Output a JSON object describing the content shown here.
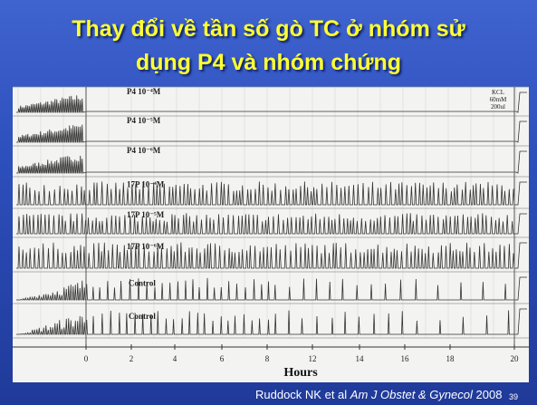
{
  "slide": {
    "title_lines": [
      "Thay đổi về tần số gò TC ở nhóm sử",
      "dụng P4 và nhóm chứng"
    ],
    "figure": {
      "traces": [
        {
          "label": "P4 10⁻⁴M"
        },
        {
          "label": "P4 10⁻⁵M"
        },
        {
          "label": "P4 10⁻⁶M"
        },
        {
          "label": "17P 10⁻⁴M"
        },
        {
          "label": "17P 10⁻⁵M"
        },
        {
          "label": "17P 10⁻⁶M"
        },
        {
          "label": "Control"
        },
        {
          "label": "Control"
        }
      ],
      "kcl_note": [
        "KCL",
        "60mM",
        "200ul"
      ],
      "axis": {
        "ticks": [
          0,
          2,
          4,
          6,
          8,
          12,
          14,
          16,
          18,
          20
        ],
        "label": "Hours"
      }
    },
    "citation": {
      "authors": "Ruddock NK et al",
      "journal": "Am J Obstet & Gynecol",
      "year": "2008"
    },
    "page_number": 39
  }
}
